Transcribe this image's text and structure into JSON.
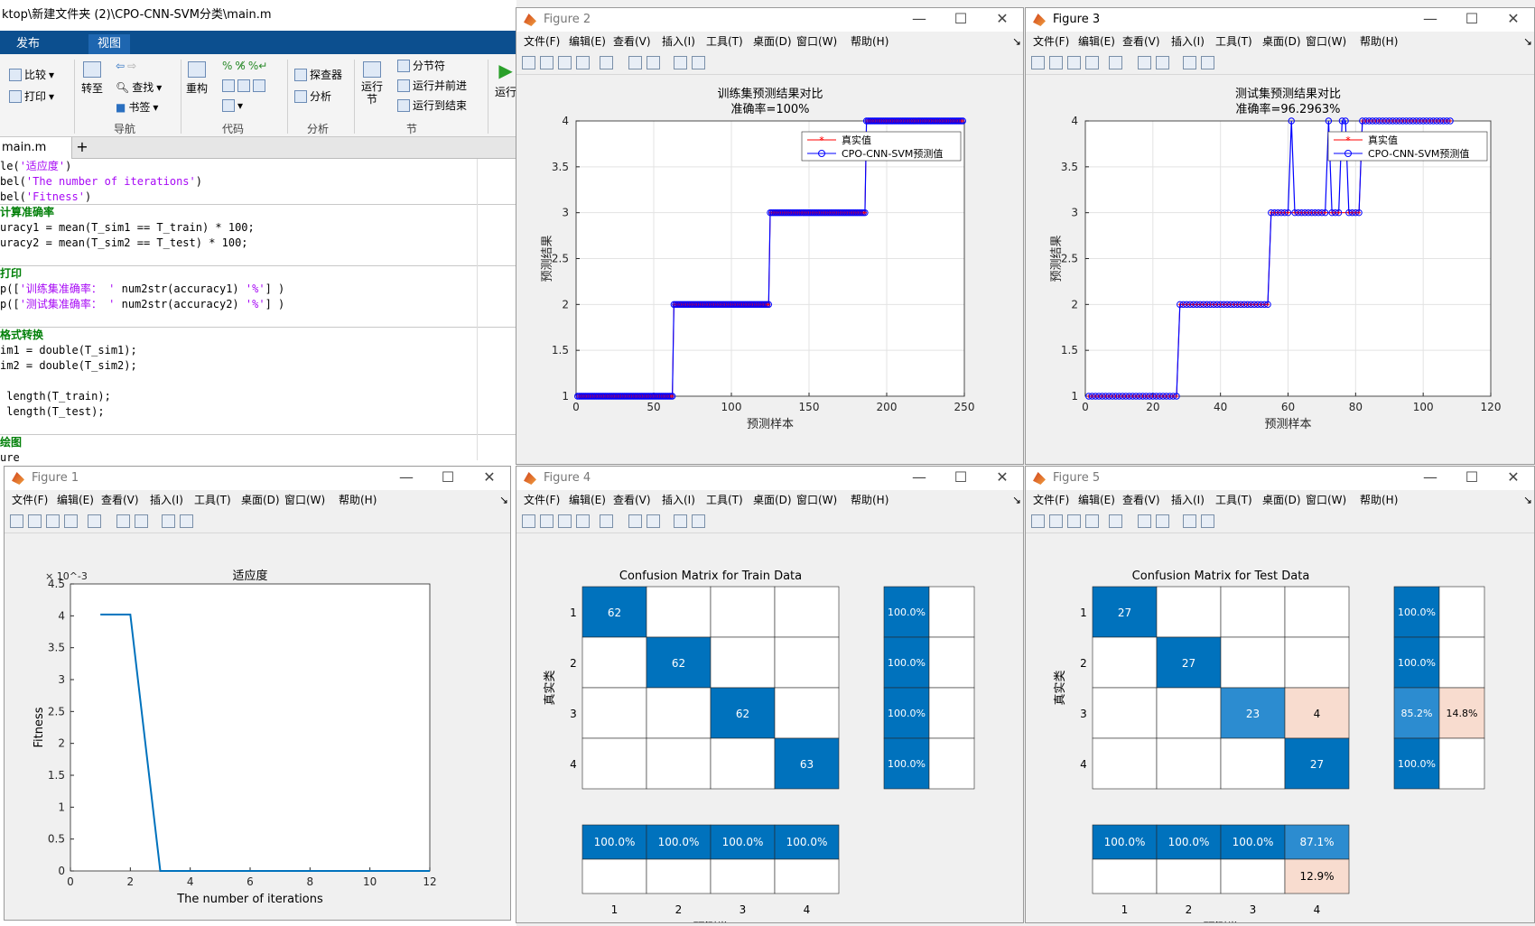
{
  "editor": {
    "title_path": "ktop\\新建文件夹 (2)\\CPO-CNN-SVM分类\\main.m",
    "ribbon_tabs": [
      "发布",
      "视图"
    ],
    "ribbon": {
      "compare": "比较",
      "print": "打印",
      "goto": "转至",
      "find": "查找",
      "bookmark": "书签",
      "refactor": "重构",
      "explorer": "探查器",
      "analyze": "分析",
      "run_section": "运行\n节",
      "section_break": "分节符",
      "run_advance": "运行并前进",
      "run_to_end": "运行到结束",
      "run": "运行",
      "groups": {
        "nav": "导航",
        "code": "代码",
        "analysis": "分析",
        "section": "节"
      }
    },
    "file_tab": "main.m",
    "code_lines": [
      {
        "pre": "le(",
        "str": "'适应度'",
        "post": ")"
      },
      {
        "pre": "bel(",
        "str": "'The number of iterations'",
        "post": ")"
      },
      {
        "pre": "bel(",
        "str": "'Fitness'",
        "post": ")"
      },
      {
        "comment": "计算准确率"
      },
      {
        "pre": "uracy1 = mean(T_sim1 == T_train) * 100;"
      },
      {
        "pre": "uracy2 = mean(T_sim2 == T_test) * 100;"
      },
      {
        "blank": true
      },
      {
        "comment": "打印"
      },
      {
        "pre": "p([",
        "str": "'训练集准确率： '",
        "post": " num2str(accuracy1) ",
        "str2": "'%'",
        "post2": "] )"
      },
      {
        "pre": "p([",
        "str": "'测试集准确率： '",
        "post": " num2str(accuracy2) ",
        "str2": "'%'",
        "post2": "] )"
      },
      {
        "blank": true
      },
      {
        "comment": "格式转换"
      },
      {
        "pre": "im1 = double(T_sim1);"
      },
      {
        "pre": "im2 = double(T_sim2);"
      },
      {
        "blank": true
      },
      {
        "pre": " length(T_train);"
      },
      {
        "pre": " length(T_test);"
      },
      {
        "blank": true
      },
      {
        "comment": "绘图"
      },
      {
        "pre": "ure"
      }
    ]
  },
  "menu_items": [
    "文件(F)",
    "编辑(E)",
    "查看(V)",
    "插入(I)",
    "工具(T)",
    "桌面(D)",
    "窗口(W)",
    "帮助(H)"
  ],
  "figures": {
    "fig1": {
      "title": "Figure 1"
    },
    "fig2": {
      "title": "Figure 2"
    },
    "fig3": {
      "title": "Figure 3"
    },
    "fig4": {
      "title": "Figure 4"
    },
    "fig5": {
      "title": "Figure 5"
    }
  },
  "chart_data": [
    {
      "id": "fig1",
      "type": "line",
      "title": "适应度",
      "xlabel": "The number of iterations",
      "ylabel": "Fitness",
      "y_exponent_label": "× 10^-3",
      "xlim": [
        0,
        12
      ],
      "ylim": [
        0,
        4.5
      ],
      "xticks": [
        0,
        2,
        4,
        6,
        8,
        10,
        12
      ],
      "yticks": [
        0,
        0.5,
        1,
        1.5,
        2,
        2.5,
        3,
        3.5,
        4,
        4.5
      ],
      "x": [
        1,
        2,
        3,
        4,
        5,
        6,
        7,
        8,
        9,
        10,
        11,
        12
      ],
      "y": [
        4.02,
        4.02,
        0,
        0,
        0,
        0,
        0,
        0,
        0,
        0,
        0,
        0
      ],
      "color": "#0072bd"
    },
    {
      "id": "fig2",
      "type": "line",
      "title": "训练集预测结果对比",
      "subtitle": "准确率=100%",
      "xlabel": "预测样本",
      "ylabel": "预测结果",
      "xlim": [
        0,
        250
      ],
      "ylim": [
        1,
        4
      ],
      "xticks": [
        0,
        50,
        100,
        150,
        200,
        250
      ],
      "yticks": [
        1,
        1.5,
        2,
        2.5,
        3,
        3.5,
        4
      ],
      "legend": [
        "真实值",
        "CPO-CNN-SVM预测值"
      ],
      "legend_position": "top-right",
      "grid": true,
      "class_counts": [
        62,
        62,
        62,
        63
      ],
      "mismatches": []
    },
    {
      "id": "fig3",
      "type": "line",
      "title": "测试集预测结果对比",
      "subtitle": "准确率=96.2963%",
      "xlabel": "预测样本",
      "ylabel": "预测结果",
      "xlim": [
        0,
        120
      ],
      "ylim": [
        1,
        4
      ],
      "xticks": [
        0,
        20,
        40,
        60,
        80,
        100,
        120
      ],
      "yticks": [
        1,
        1.5,
        2,
        2.5,
        3,
        3.5,
        4
      ],
      "legend": [
        "真实值",
        "CPO-CNN-SVM预测值"
      ],
      "legend_position": "top-right",
      "grid": true,
      "class_counts": [
        27,
        27,
        27,
        27
      ],
      "mismatches": [
        61,
        72,
        76,
        77
      ]
    },
    {
      "id": "fig4",
      "type": "heatmap",
      "title": "Confusion Matrix for Train Data",
      "xlabel": "预测类",
      "ylabel": "真实类",
      "classes": [
        "1",
        "2",
        "3",
        "4"
      ],
      "matrix": [
        [
          62,
          0,
          0,
          0
        ],
        [
          0,
          62,
          0,
          0
        ],
        [
          0,
          0,
          62,
          0
        ],
        [
          0,
          0,
          0,
          63
        ]
      ],
      "row_summary": [
        [
          "100.0%",
          ""
        ],
        [
          "100.0%",
          ""
        ],
        [
          "100.0%",
          ""
        ],
        [
          "100.0%",
          ""
        ]
      ],
      "col_summary": [
        [
          "100.0%",
          ""
        ],
        [
          "100.0%",
          ""
        ],
        [
          "100.0%",
          ""
        ],
        [
          "100.0%",
          ""
        ]
      ]
    },
    {
      "id": "fig5",
      "type": "heatmap",
      "title": "Confusion Matrix for Test Data",
      "xlabel": "预测类",
      "ylabel": "真实类",
      "classes": [
        "1",
        "2",
        "3",
        "4"
      ],
      "matrix": [
        [
          27,
          0,
          0,
          0
        ],
        [
          0,
          27,
          0,
          0
        ],
        [
          0,
          0,
          23,
          4
        ],
        [
          0,
          0,
          0,
          27
        ]
      ],
      "row_summary": [
        [
          "100.0%",
          ""
        ],
        [
          "100.0%",
          ""
        ],
        [
          "85.2%",
          "14.8%"
        ],
        [
          "100.0%",
          ""
        ]
      ],
      "col_summary": [
        [
          "100.0%",
          ""
        ],
        [
          "100.0%",
          ""
        ],
        [
          "100.0%",
          ""
        ],
        [
          "87.1%",
          "12.9%"
        ]
      ]
    }
  ]
}
